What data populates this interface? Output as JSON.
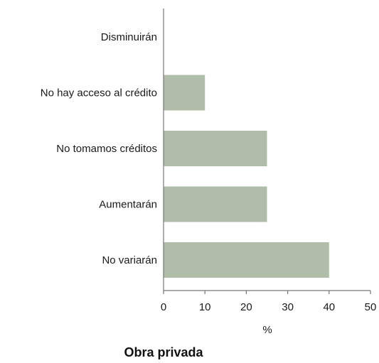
{
  "chart_data": {
    "type": "bar",
    "orientation": "horizontal",
    "categories": [
      "Disminuirán",
      "No hay acceso al crédito",
      "No tomamos créditos",
      "Aumentarán",
      "No variarán"
    ],
    "values": [
      0,
      10,
      25,
      25,
      40
    ],
    "title": "Obra privada",
    "xlabel": "%",
    "ylabel": "",
    "xlim": [
      0,
      50
    ],
    "xticks": [
      "0",
      "10",
      "20",
      "30",
      "40",
      "50"
    ],
    "grid": false,
    "bar_color": "#b0bea9"
  }
}
